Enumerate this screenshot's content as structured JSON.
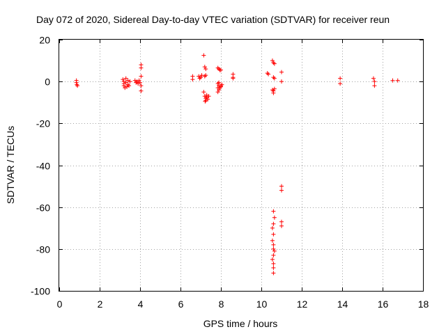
{
  "chart_data": {
    "type": "scatter",
    "title": "Day 072 of 2020, Sidereal Day-to-day VTEC variation (SDTVAR) for receiver reun",
    "xlabel": "GPS time / hours",
    "ylabel": "SDTVAR / TECUs",
    "xlim": [
      0,
      18
    ],
    "ylim": [
      -100,
      20
    ],
    "xticks": [
      "0",
      "2",
      "4",
      "6",
      "8",
      "10",
      "12",
      "14",
      "16",
      "18"
    ],
    "yticks": [
      "20",
      "0",
      "-20",
      "-40",
      "-60",
      "-80",
      "-100"
    ],
    "grid": true,
    "marker": "+",
    "color": "#ff0000",
    "series": [
      {
        "name": "SDTVAR",
        "points": [
          [
            0.85,
            0.5
          ],
          [
            0.85,
            -0.5
          ],
          [
            0.87,
            -1.5
          ],
          [
            0.9,
            -2
          ],
          [
            3.15,
            1
          ],
          [
            3.2,
            0
          ],
          [
            3.2,
            -1
          ],
          [
            3.2,
            -2
          ],
          [
            3.25,
            -3
          ],
          [
            3.3,
            1.5
          ],
          [
            3.3,
            -0.5
          ],
          [
            3.35,
            -2.5
          ],
          [
            3.4,
            0.5
          ],
          [
            3.4,
            -1.5
          ],
          [
            3.45,
            -2
          ],
          [
            3.5,
            0
          ],
          [
            3.75,
            0.5
          ],
          [
            3.8,
            -0.5
          ],
          [
            3.85,
            0
          ],
          [
            3.9,
            -1
          ],
          [
            3.95,
            0.5
          ],
          [
            4.0,
            -0.5
          ],
          [
            4.05,
            8
          ],
          [
            4.05,
            6.5
          ],
          [
            4.05,
            2.5
          ],
          [
            4.05,
            -2
          ],
          [
            4.05,
            -4.5
          ],
          [
            6.6,
            2.5
          ],
          [
            6.6,
            1
          ],
          [
            6.9,
            2.5
          ],
          [
            6.95,
            1.5
          ],
          [
            7.0,
            2
          ],
          [
            7.05,
            3
          ],
          [
            7.15,
            12.5
          ],
          [
            7.15,
            -5
          ],
          [
            7.2,
            7
          ],
          [
            7.25,
            6
          ],
          [
            7.2,
            2.5
          ],
          [
            7.25,
            3
          ],
          [
            7.2,
            -7
          ],
          [
            7.25,
            -8
          ],
          [
            7.25,
            -9
          ],
          [
            7.3,
            -7.5
          ],
          [
            7.35,
            -8.5
          ],
          [
            7.4,
            -7
          ],
          [
            7.3,
            -6.5
          ],
          [
            7.22,
            -9.5
          ],
          [
            7.85,
            6.5
          ],
          [
            7.9,
            6
          ],
          [
            7.95,
            5.5
          ],
          [
            8.0,
            5.5
          ],
          [
            7.85,
            -1
          ],
          [
            7.9,
            -2
          ],
          [
            7.85,
            -3
          ],
          [
            7.9,
            -4
          ],
          [
            7.85,
            -5
          ],
          [
            7.95,
            -3
          ],
          [
            8.0,
            -2
          ],
          [
            8.05,
            -1.5
          ],
          [
            7.9,
            -0.5
          ],
          [
            8.0,
            -2.5
          ],
          [
            8.6,
            3.5
          ],
          [
            8.6,
            2
          ],
          [
            8.6,
            1.5
          ],
          [
            10.3,
            4
          ],
          [
            10.35,
            3.5
          ],
          [
            10.55,
            10
          ],
          [
            10.6,
            9
          ],
          [
            10.65,
            8.5
          ],
          [
            10.6,
            2
          ],
          [
            10.65,
            1.5
          ],
          [
            10.55,
            -4
          ],
          [
            10.6,
            -4.5
          ],
          [
            10.6,
            -5.5
          ],
          [
            10.65,
            -3.5
          ],
          [
            10.6,
            -62
          ],
          [
            10.65,
            -65
          ],
          [
            10.6,
            -68
          ],
          [
            10.55,
            -70
          ],
          [
            10.6,
            -73
          ],
          [
            10.55,
            -76
          ],
          [
            10.6,
            -78
          ],
          [
            10.6,
            -80
          ],
          [
            10.65,
            -81
          ],
          [
            10.6,
            -83
          ],
          [
            10.55,
            -85
          ],
          [
            10.6,
            -87
          ],
          [
            10.6,
            -89
          ],
          [
            10.6,
            -91.5
          ],
          [
            11.0,
            4.5
          ],
          [
            11.0,
            0
          ],
          [
            11.0,
            -50
          ],
          [
            11.0,
            -52
          ],
          [
            11.0,
            -67
          ],
          [
            11.0,
            -69
          ],
          [
            13.9,
            1.5
          ],
          [
            13.9,
            -1
          ],
          [
            15.55,
            1.5
          ],
          [
            15.6,
            0
          ],
          [
            15.6,
            -2
          ],
          [
            16.5,
            0.5
          ],
          [
            16.75,
            0.5
          ]
        ]
      }
    ]
  }
}
